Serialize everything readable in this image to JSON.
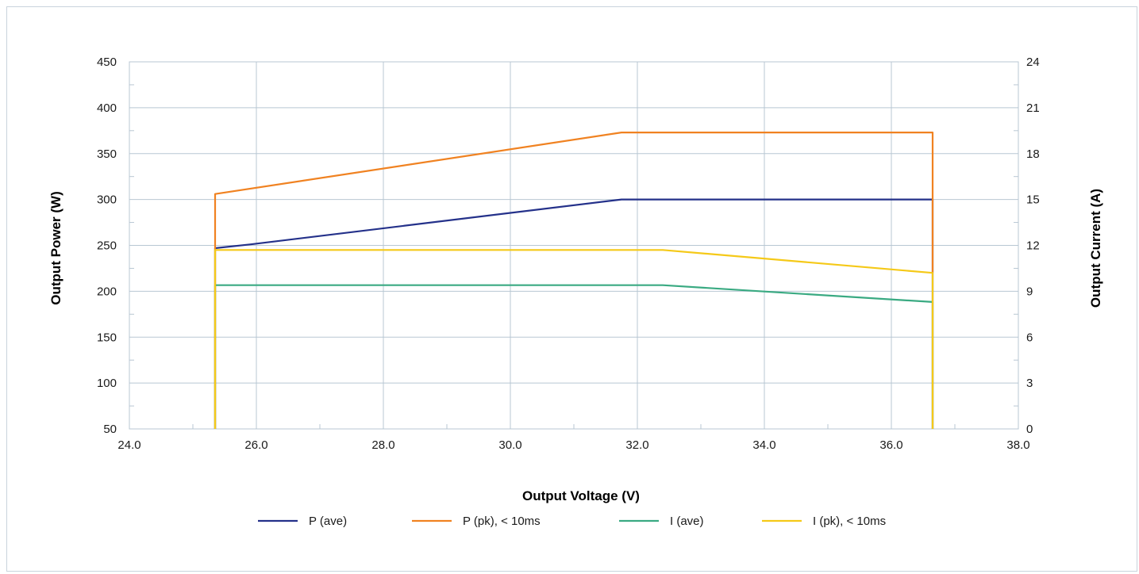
{
  "chart_data": {
    "type": "line",
    "xlabel": "Output Voltage (V)",
    "ylabel_left": "Output Power (W)",
    "ylabel_right": "Output Current (A)",
    "xlim": [
      24.0,
      38.0
    ],
    "ylim_left": [
      50,
      450
    ],
    "ylim_right": [
      0,
      24
    ],
    "x_ticks": [
      "24.0",
      "26.0",
      "28.0",
      "30.0",
      "32.0",
      "34.0",
      "36.0",
      "38.0"
    ],
    "y_left_ticks": [
      "50",
      "100",
      "150",
      "200",
      "250",
      "300",
      "350",
      "400",
      "450"
    ],
    "y_right_ticks": [
      "0",
      "3",
      "6",
      "9",
      "12",
      "15",
      "18",
      "21",
      "24"
    ],
    "grid": true,
    "legend_position": "bottom",
    "series": [
      {
        "name": "P (ave)",
        "axis": "left",
        "color": "#24318a",
        "x": [
          25.35,
          25.35,
          25.9,
          31.75,
          36.65,
          36.65
        ],
        "y": [
          50,
          247,
          251,
          300,
          300,
          50
        ]
      },
      {
        "name": "P (pk), < 10ms",
        "axis": "left",
        "color": "#f08221",
        "x": [
          25.35,
          25.35,
          31.75,
          36.65,
          36.65
        ],
        "y": [
          50,
          306,
          373,
          373,
          220
        ]
      },
      {
        "name": "I (ave)",
        "axis": "right",
        "color": "#3aaa82",
        "x": [
          25.35,
          25.35,
          32.4,
          36.65,
          36.65
        ],
        "y": [
          0,
          9.4,
          9.4,
          8.3,
          0
        ]
      },
      {
        "name": "I (pk), < 10ms",
        "axis": "right",
        "color": "#f5c918",
        "x": [
          25.35,
          25.35,
          32.4,
          36.65,
          36.65
        ],
        "y": [
          0,
          11.7,
          11.7,
          10.2,
          0
        ]
      }
    ]
  }
}
